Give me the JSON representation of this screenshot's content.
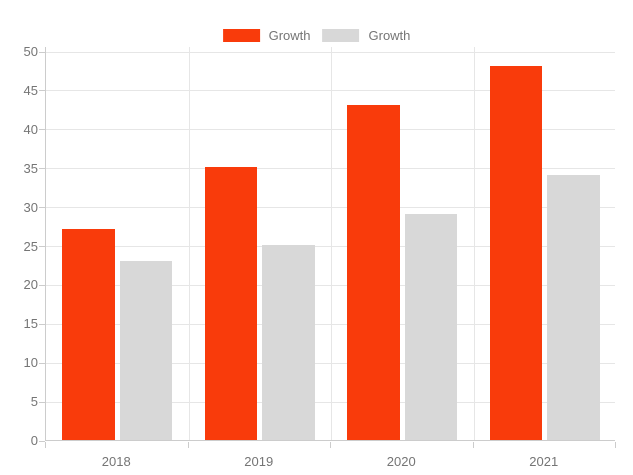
{
  "legend": {
    "items": [
      {
        "label": "Growth",
        "color": "#f93b0b"
      },
      {
        "label": "Growth",
        "color": "#d8d8d8"
      }
    ]
  },
  "chart_data": {
    "type": "bar",
    "categories": [
      "2018",
      "2019",
      "2020",
      "2021"
    ],
    "series": [
      {
        "name": "Growth",
        "color": "#f93b0b",
        "values": [
          27,
          35,
          43,
          48
        ]
      },
      {
        "name": "Growth",
        "color": "#d8d8d8",
        "values": [
          23,
          25,
          29,
          34
        ]
      }
    ],
    "title": "",
    "xlabel": "",
    "ylabel": "",
    "ylim": [
      0,
      50
    ],
    "ytick_step": 5,
    "ytick_labels": [
      "0",
      "5",
      "10",
      "15",
      "20",
      "25",
      "30",
      "35",
      "40",
      "45",
      "50"
    ],
    "grid": true,
    "legend_position": "top"
  },
  "colors": {
    "background": "#ffffff",
    "gridline": "#e6e6e6",
    "axis": "#cccccc",
    "text": "#757575"
  }
}
